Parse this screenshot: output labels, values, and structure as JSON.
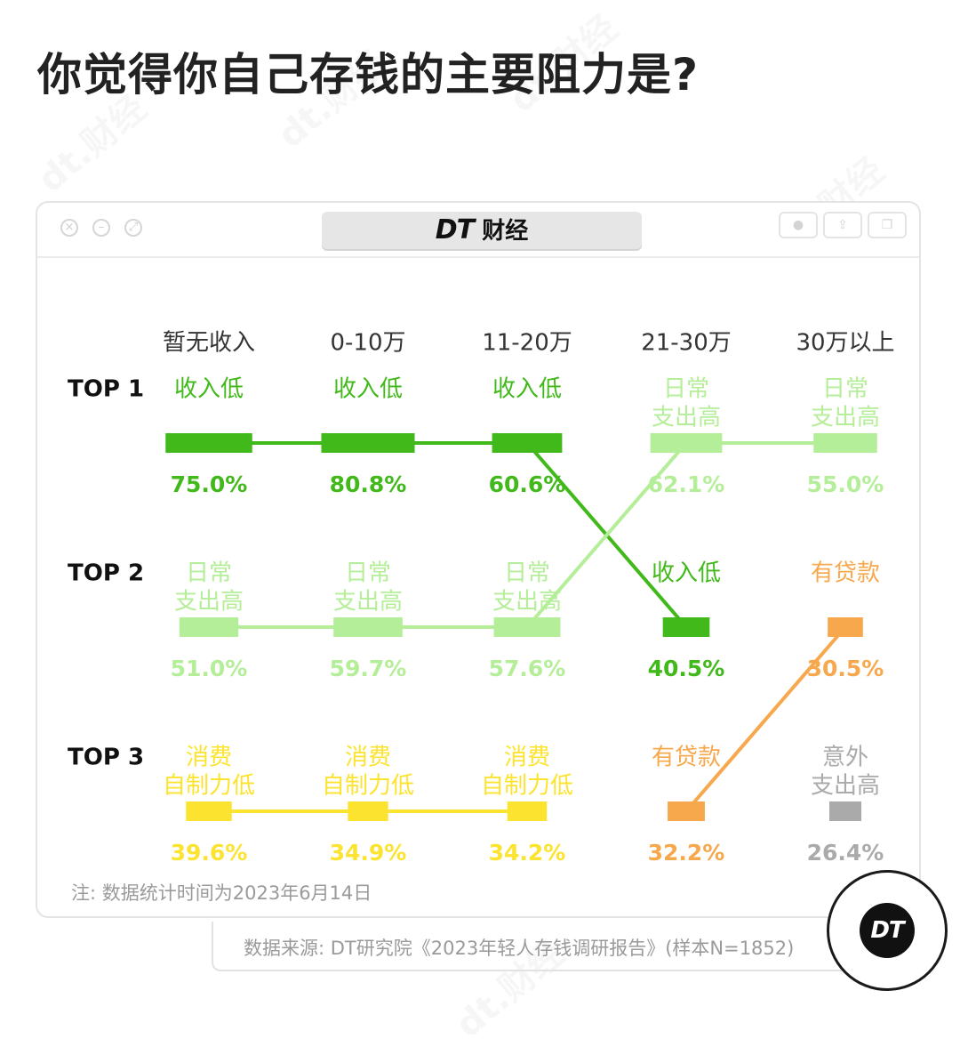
{
  "title": "你觉得你自己存钱的主要阻力是?",
  "window": {
    "brand_dt": "DT",
    "brand_name": "财经"
  },
  "note": "注: 数据统计时间为2023年6月14日",
  "source": "数据来源: DT研究院《2023年轻人存钱调研报告》(样本N=1852)",
  "logo_text": "DT",
  "watermark": "dt.财经",
  "colors": {
    "income_low": "#41b91a",
    "daily_spend": "#b5ee98",
    "self_control": "#fce330",
    "loan": "#f7a84d",
    "accident": "#aaaaaa"
  },
  "chart_data": {
    "type": "table",
    "categories": [
      "暂无收入",
      "0-10万",
      "11-20万",
      "21-30万",
      "30万以上"
    ],
    "ranks": [
      "TOP 1",
      "TOP 2",
      "TOP 3"
    ],
    "series": [
      {
        "name": "收入低",
        "lines": [
          "收入低"
        ],
        "color": "income_low",
        "values": [
          75.0,
          80.8,
          60.6,
          40.5,
          null
        ],
        "labels": [
          "75.0%",
          "80.8%",
          "60.6%",
          "40.5%",
          null
        ],
        "ranks": [
          1,
          1,
          1,
          2,
          null
        ]
      },
      {
        "name": "日常支出高",
        "lines": [
          "日常",
          "支出高"
        ],
        "color": "daily_spend",
        "values": [
          51.0,
          59.7,
          57.6,
          62.1,
          55.0
        ],
        "labels": [
          "51.0%",
          "59.7%",
          "57.6%",
          "62.1%",
          "55.0%"
        ],
        "ranks": [
          2,
          2,
          2,
          1,
          1
        ]
      },
      {
        "name": "消费自制力低",
        "lines": [
          "消费",
          "自制力低"
        ],
        "color": "self_control",
        "values": [
          39.6,
          34.9,
          34.2,
          null,
          null
        ],
        "labels": [
          "39.6%",
          "34.9%",
          "34.2%",
          null,
          null
        ],
        "ranks": [
          3,
          3,
          3,
          null,
          null
        ]
      },
      {
        "name": "有贷款",
        "lines": [
          "有贷款"
        ],
        "color": "loan",
        "values": [
          null,
          null,
          null,
          32.2,
          30.5
        ],
        "labels": [
          null,
          null,
          null,
          "32.2%",
          "30.5%"
        ],
        "ranks": [
          null,
          null,
          null,
          3,
          2
        ]
      },
      {
        "name": "意外支出高",
        "lines": [
          "意外",
          "支出高"
        ],
        "color": "accident",
        "values": [
          null,
          null,
          null,
          null,
          26.4
        ],
        "labels": [
          null,
          null,
          null,
          null,
          "26.4%"
        ],
        "ranks": [
          null,
          null,
          null,
          null,
          3
        ]
      }
    ]
  }
}
